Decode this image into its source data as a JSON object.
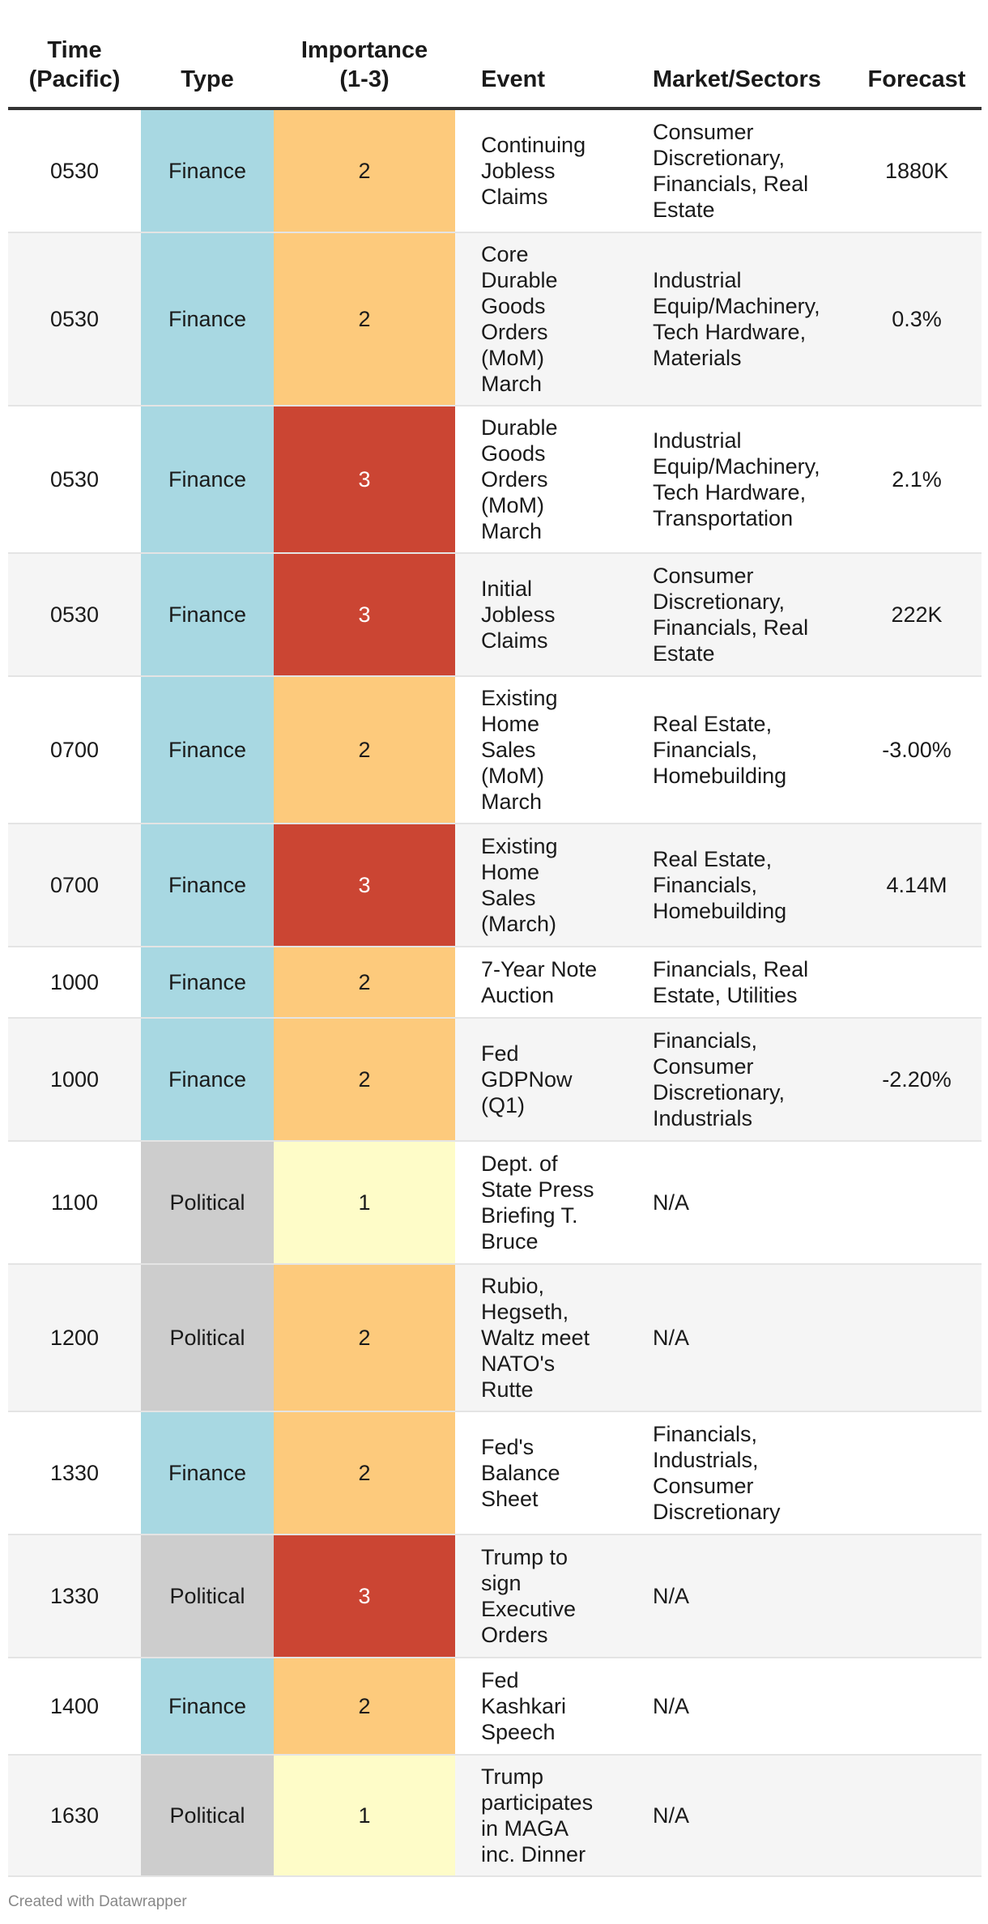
{
  "colors": {
    "finance": "#a8d8e2",
    "political": "#cdcdcd",
    "importance_1": "#fefcc8",
    "importance_2": "#fdca7c",
    "importance_3": "#cb4533"
  },
  "headers": {
    "time": "Time\n(Pacific)",
    "type": "Type",
    "importance": "Importance\n(1-3)",
    "event": "Event",
    "market": "Market/Sectors",
    "forecast": "Forecast"
  },
  "rows": [
    {
      "time": "0530",
      "type": "Finance",
      "importance": "2",
      "event": "Continuing\nJobless\nClaims",
      "market": "Consumer\nDiscretionary,\nFinancials, Real\nEstate",
      "forecast": "1880K"
    },
    {
      "time": "0530",
      "type": "Finance",
      "importance": "2",
      "event": "Core\nDurable\nGoods\nOrders\n(MoM)\nMarch",
      "market": "Industrial\nEquip/Machinery,\nTech Hardware,\nMaterials",
      "forecast": "0.3%"
    },
    {
      "time": "0530",
      "type": "Finance",
      "importance": "3",
      "event": "Durable\nGoods\nOrders\n(MoM)\nMarch",
      "market": "Industrial\nEquip/Machinery,\nTech Hardware,\nTransportation",
      "forecast": "2.1%"
    },
    {
      "time": "0530",
      "type": "Finance",
      "importance": "3",
      "event": "Initial\nJobless\nClaims",
      "market": "Consumer\nDiscretionary,\nFinancials, Real\nEstate",
      "forecast": "222K"
    },
    {
      "time": "0700",
      "type": "Finance",
      "importance": "2",
      "event": "Existing\nHome\nSales\n(MoM)\nMarch",
      "market": "Real Estate,\nFinancials,\nHomebuilding",
      "forecast": "-3.00%"
    },
    {
      "time": "0700",
      "type": "Finance",
      "importance": "3",
      "event": "Existing\nHome\nSales\n(March)",
      "market": "Real Estate,\nFinancials,\nHomebuilding",
      "forecast": "4.14M"
    },
    {
      "time": "1000",
      "type": "Finance",
      "importance": "2",
      "event": "7-Year Note\nAuction",
      "market": "Financials, Real\nEstate, Utilities",
      "forecast": ""
    },
    {
      "time": "1000",
      "type": "Finance",
      "importance": "2",
      "event": "Fed\nGDPNow\n(Q1)",
      "market": "Financials,\nConsumer\nDiscretionary,\nIndustrials",
      "forecast": "-2.20%"
    },
    {
      "time": "1100",
      "type": "Political",
      "importance": "1",
      "event": "Dept. of\nState Press\nBriefing T.\nBruce",
      "market": "N/A",
      "forecast": ""
    },
    {
      "time": "1200",
      "type": "Political",
      "importance": "2",
      "event": "Rubio,\nHegseth,\nWaltz meet\nNATO's\nRutte",
      "market": "N/A",
      "forecast": ""
    },
    {
      "time": "1330",
      "type": "Finance",
      "importance": "2",
      "event": "Fed's\nBalance\nSheet",
      "market": "Financials,\nIndustrials,\nConsumer\nDiscretionary",
      "forecast": ""
    },
    {
      "time": "1330",
      "type": "Political",
      "importance": "3",
      "event": "Trump to\nsign\nExecutive\nOrders",
      "market": "N/A",
      "forecast": ""
    },
    {
      "time": "1400",
      "type": "Finance",
      "importance": "2",
      "event": "Fed\nKashkari\nSpeech",
      "market": "N/A",
      "forecast": ""
    },
    {
      "time": "1630",
      "type": "Political",
      "importance": "1",
      "event": "Trump\nparticipates\nin MAGA\ninc. Dinner",
      "market": "N/A",
      "forecast": ""
    }
  ],
  "footer": "Created with Datawrapper"
}
